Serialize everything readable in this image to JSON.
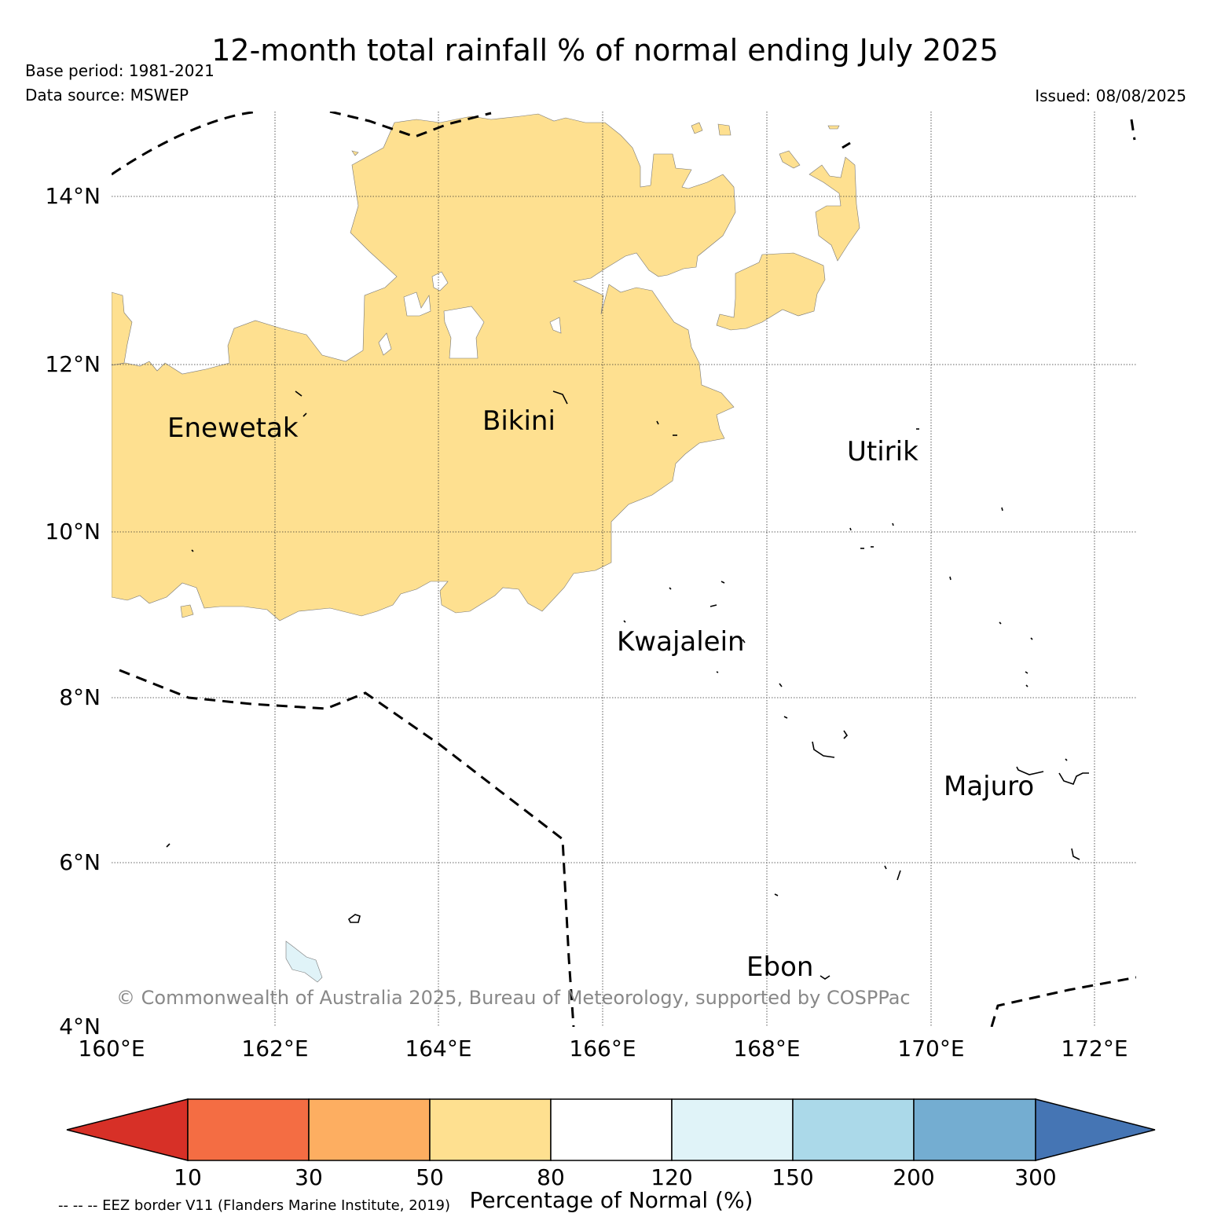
{
  "header": {
    "title": "12-month total rainfall % of normal ending July 2025",
    "base_period": "Base period: 1981-2021",
    "data_source": "Data source: MSWEP",
    "issued": "Issued: 08/08/2025"
  },
  "map": {
    "lat_labels": [
      "14°N",
      "12°N",
      "10°N",
      "8°N",
      "6°N",
      "4°N"
    ],
    "lon_labels": [
      "160°E",
      "162°E",
      "164°E",
      "166°E",
      "168°E",
      "170°E",
      "172°E"
    ],
    "places": {
      "enewetak": "Enewetak",
      "bikini": "Bikini",
      "utirik": "Utirik",
      "kwajalein": "Kwajalein",
      "majuro": "Majuro",
      "ebon": "Ebon"
    },
    "copyright": "© Commonwealth of Australia 2025, Bureau of Meteorology, supported by COSPPac",
    "colors": {
      "dry_50_80": "#fee090",
      "wet_120_150": "#e0f3f8"
    }
  },
  "colorbar": {
    "title": "Percentage of Normal (%)",
    "ticks": [
      "10",
      "30",
      "50",
      "80",
      "120",
      "150",
      "200",
      "300"
    ],
    "colors": {
      "below_10": "#d73027",
      "c10_30": "#f46d43",
      "c30_50": "#fdae61",
      "c50_80": "#fee090",
      "c80_120": "#ffffff",
      "c120_150": "#e0f3f8",
      "c150_200": "#abd9e9",
      "c200_300": "#74add1",
      "above_300": "#4575b4"
    }
  },
  "footer": {
    "eez_note": "-- -- -- EEZ border V11 (Flanders Marine Institute, 2019)"
  }
}
